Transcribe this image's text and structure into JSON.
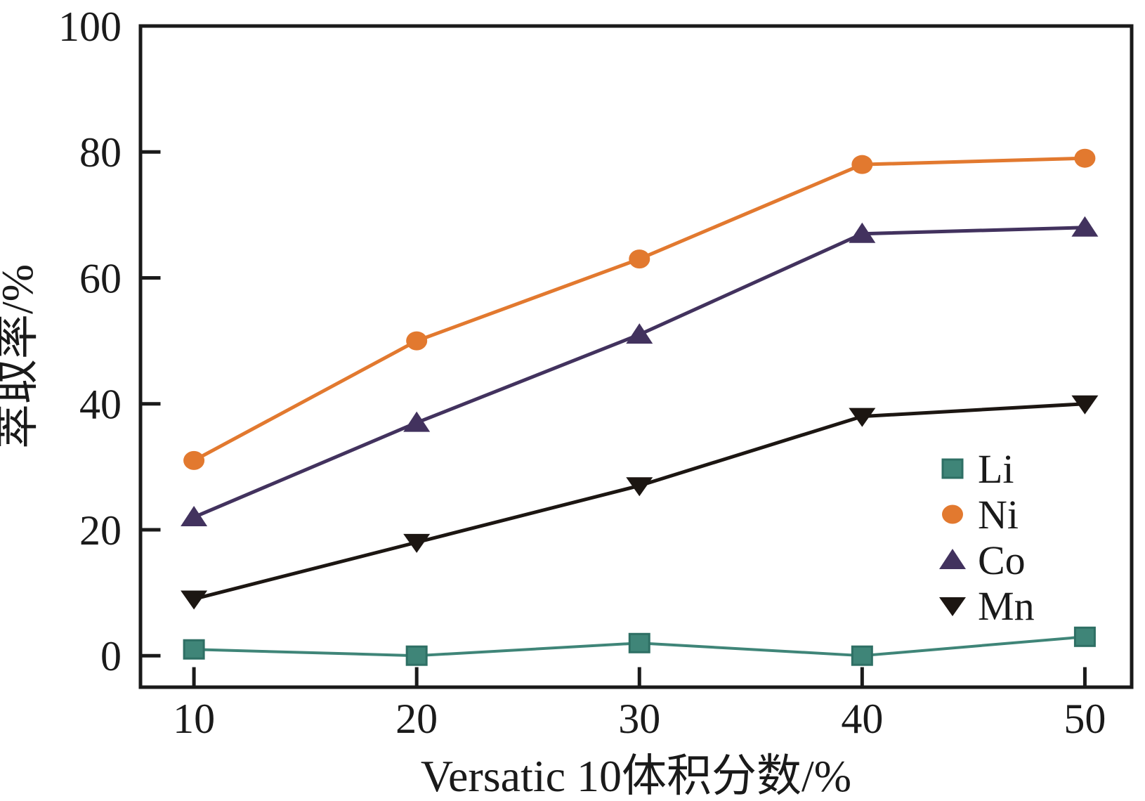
{
  "chart_data": {
    "type": "line",
    "title": "",
    "xlabel": "Versatic 10体积分数/%",
    "ylabel": "萃取率/%",
    "x": [
      10,
      20,
      30,
      40,
      50
    ],
    "x_ticks": [
      "10",
      "20",
      "30",
      "40",
      "50"
    ],
    "y_ticks": [
      "0",
      "20",
      "40",
      "60",
      "80",
      "100"
    ],
    "y_tick_values": [
      0,
      20,
      40,
      60,
      80,
      100
    ],
    "xlim": [
      7.6,
      52.1
    ],
    "ylim": [
      -5,
      100
    ],
    "grid": false,
    "legend_position": "inside-lower-right",
    "axis_color": "#1a1a1a",
    "background": "#ffffff",
    "series": [
      {
        "name": "Ni",
        "marker": "circle",
        "color": "#e2792f",
        "line_width": 5,
        "values": [
          31,
          50,
          63,
          78,
          79
        ]
      },
      {
        "name": "Co",
        "marker": "triangle-up",
        "color": "#42325e",
        "line_width": 5,
        "values": [
          22,
          37,
          51,
          67,
          68
        ]
      },
      {
        "name": "Mn",
        "marker": "triangle-down",
        "color": "#1c1612",
        "line_width": 5,
        "values": [
          9,
          18,
          27,
          38,
          40
        ]
      },
      {
        "name": "Li",
        "marker": "square",
        "color": "#3f8578",
        "marker_stroke": "#2e6f64",
        "line_width": 4,
        "values": [
          1,
          0,
          2,
          0,
          3
        ]
      }
    ],
    "legend_order": [
      "Li",
      "Ni",
      "Co",
      "Mn"
    ]
  }
}
